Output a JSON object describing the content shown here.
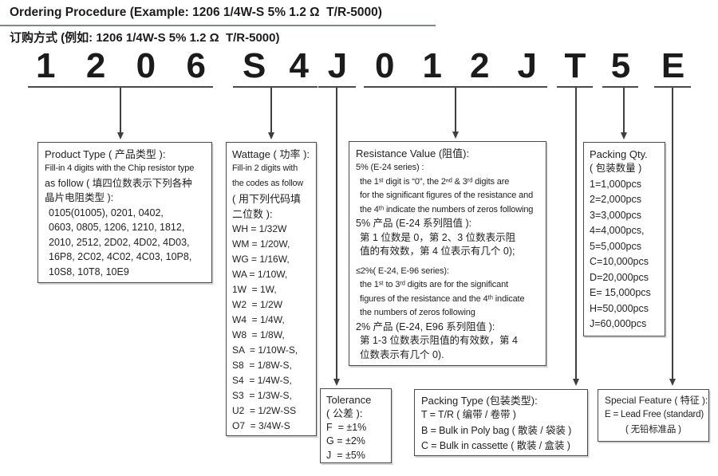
{
  "header": {
    "title_en": "Ordering Procedure (Example: 1206 1/4W-S 5% 1.2 Ω  T/R-5000)",
    "title_zh": "订购方式 (例如: 1206 1/4W-S 5% 1.2 Ω  T/R-5000)"
  },
  "code": {
    "example": "1206 S4 J 012J T 5 E",
    "groups": [
      {
        "chars": [
          "1",
          "2",
          "0",
          "6"
        ]
      },
      {
        "chars": [
          "S",
          "4"
        ]
      },
      {
        "chars": [
          "J"
        ]
      },
      {
        "chars": [
          "0",
          "1",
          "2",
          "J"
        ]
      },
      {
        "chars": [
          "T"
        ]
      },
      {
        "chars": [
          "5"
        ]
      },
      {
        "chars": [
          "E"
        ]
      }
    ]
  },
  "boxes": {
    "product_type": {
      "title": "Product Type ( 产品类型 ):",
      "lines": [
        {
          "t": "Fill-in 4 digits with the Chip resistor type",
          "c": "line sm"
        },
        {
          "t": "as follow ( 填四位数表示下列各种",
          "c": "line"
        },
        {
          "t": "晶片电阻类型 ):",
          "c": "line"
        },
        {
          "t": "0105(01005), 0201, 0402,",
          "c": "line ind"
        },
        {
          "t": "0603, 0805, 1206, 1210, 1812,",
          "c": "line ind"
        },
        {
          "t": "2010, 2512, 2D02, 4D02, 4D03,",
          "c": "line ind"
        },
        {
          "t": "16P8, 2C02, 4C02, 4C03, 10P8,",
          "c": "line ind"
        },
        {
          "t": "10S8, 10T8, 10E9",
          "c": "line ind"
        }
      ]
    },
    "wattage": {
      "title": "Wattage ( 功率 ):",
      "lines": [
        {
          "t": "Fill-in 2 digits with",
          "c": "line sm"
        },
        {
          "t": "the codes as follow",
          "c": "line sm"
        },
        {
          "t": "( 用下列代码填",
          "c": "line zh"
        },
        {
          "t": "二位数 ):",
          "c": "line zh"
        },
        "WH = 1/32W",
        "WM = 1/20W,",
        "WG = 1/16W,",
        "WA = 1/10W,",
        "1W  = 1W,",
        "W2  = 1/2W",
        "W4  = 1/4W,",
        "W8  = 1/8W,",
        "SA  = 1/10W-S,",
        "S8  = 1/8W-S,",
        "S4  = 1/4W-S,",
        "S3  = 1/3W-S,",
        "U2  = 1/2W-SS",
        "O7  = 3/4W-S"
      ]
    },
    "resistance": {
      "title": "Resistance Value (阻值):",
      "lines": [
        "5% (E-24 series) :",
        {
          "t": "the 1ˢᵗ digit is “0”, the 2ⁿᵈ & 3ʳᵈ digits are",
          "c": "line ind"
        },
        {
          "t": "for the significant figures of the resistance and",
          "c": "line ind"
        },
        {
          "t": "the 4ᵗʰ indicate the numbers of zeros following",
          "c": "line ind"
        },
        {
          "t": "5% 产品 (E-24 系列阻值 ):",
          "c": "line zh"
        },
        {
          "t": "第 1 位数是 0，第 2、3 位数表示阻",
          "c": "line zh ind"
        },
        {
          "t": "值的有效数，第 4 位表示有几个 0);",
          "c": "line zh ind"
        },
        {
          "t": "≤2%( E-24, E-96 series):",
          "c": "line mt"
        },
        {
          "t": "the 1ˢᵗ to 3ʳᵈ digits are for the significant",
          "c": "line ind"
        },
        {
          "t": "figures of the resistance and the 4ᵗʰ indicate",
          "c": "line ind"
        },
        {
          "t": "the numbers of zeros following",
          "c": "line ind"
        },
        {
          "t": "2% 产品 (E-24, E96 系列阻值 ):",
          "c": "line zh"
        },
        {
          "t": "第 1-3 位数表示阻值的有效数，第 4",
          "c": "line zh ind"
        },
        {
          "t": "位数表示有几个 0).",
          "c": "line zh ind"
        }
      ]
    },
    "packing_qty": {
      "title": "Packing Qty.",
      "lines": [
        {
          "t": "( 包装数量 )",
          "c": "line zh"
        },
        "1=1,000pcs",
        "2=2,000pcs",
        "3=3,000pcs",
        "4=4,000pcs,",
        "5=5,000pcs",
        "C=10,000pcs",
        "D=20,000pcs",
        "E= 15,000pcs",
        "H=50,000pcs",
        "J=60,000pcs"
      ]
    },
    "tolerance": {
      "title": "Tolerance",
      "lines": [
        {
          "t": "( 公差 ):",
          "c": "line zh"
        },
        "F  = ±1%",
        "G = ±2%",
        "J  = ±5%"
      ]
    },
    "packing_type": {
      "title": "Packing Type (包装类型):",
      "lines": [
        "T = T/R ( 编带 / 卷带 )",
        "B = Bulk in Poly bag ( 散装 / 袋装 )",
        "C = Bulk in cassette ( 散装 / 盒装 )"
      ]
    },
    "special_feature": {
      "title": "Special Feature ( 特征 ):",
      "lines": [
        "E = Lead Free (standard)",
        {
          "t": "( 无铅标准品 )",
          "c": "line ind2"
        }
      ]
    }
  }
}
